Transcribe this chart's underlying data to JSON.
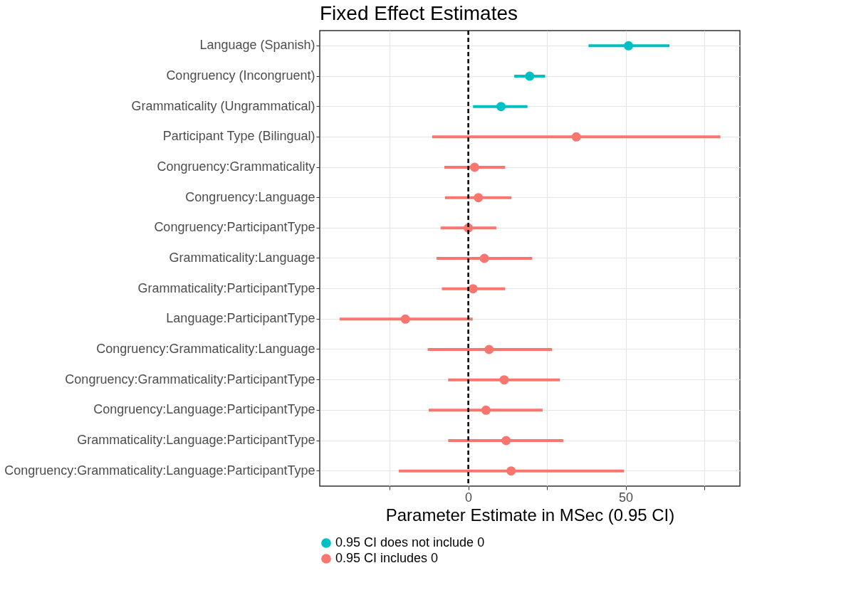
{
  "chart_data": {
    "type": "scatter",
    "orientation": "horizontal",
    "title": "Fixed Effect Estimates",
    "xlabel": "Parameter Estimate in MSec  (0.95 CI)",
    "categories": [
      "Language (Spanish)",
      "Congruency (Incongruent)",
      "Grammaticality (Ungrammatical)",
      "Participant Type (Bilingual)",
      "Congruency:Grammaticality",
      "Congruency:Language",
      "Congruency:ParticipantType",
      "Grammaticality:Language",
      "Grammaticality:ParticipantType",
      "Language:ParticipantType",
      "Congruency:Grammaticality:Language",
      "Congruency:Grammaticality:ParticipantType",
      "Congruency:Language:ParticipantType",
      "Grammaticality:Language:ParticipantType",
      "Congruency:Grammaticality:Language:ParticipantType"
    ],
    "series": [
      {
        "name": "0.95 CI does not include 0",
        "color": "#00bfc4",
        "values": [
          50.9,
          19.5,
          10.4,
          null,
          null,
          null,
          null,
          null,
          null,
          null,
          null,
          null,
          null,
          null,
          null
        ],
        "errors": [
          [
            38.2,
            63.9
          ],
          [
            14.6,
            24.4
          ],
          [
            1.5,
            18.8
          ],
          null,
          null,
          null,
          null,
          null,
          null,
          null,
          null,
          null,
          null,
          null,
          null
        ]
      },
      {
        "name": "0.95 CI includes 0",
        "color": "#f8766d",
        "values": [
          null,
          null,
          null,
          34.3,
          2.0,
          3.2,
          0.0,
          5.1,
          1.5,
          -20.0,
          6.6,
          11.4,
          5.6,
          12.0,
          13.6
        ],
        "errors": [
          null,
          null,
          null,
          [
            -11.5,
            80.1
          ],
          [
            -7.6,
            11.7
          ],
          [
            -7.4,
            13.7
          ],
          [
            -8.8,
            8.9
          ],
          [
            -10.1,
            20.3
          ],
          [
            -8.4,
            11.7
          ],
          [
            -40.9,
            1.4
          ],
          [
            -12.9,
            26.6
          ],
          [
            -6.4,
            29.1
          ],
          [
            -12.6,
            23.6
          ],
          [
            -6.4,
            30.2
          ],
          [
            -22.1,
            49.5
          ]
        ]
      }
    ],
    "xlim": [
      -47.2,
      86.3
    ],
    "xticks": [
      {
        "value": -25,
        "label": null
      },
      0,
      {
        "value": 25,
        "label": null
      },
      50,
      {
        "value": 75,
        "label": null
      }
    ],
    "ref_lines": [
      {
        "axis": "x",
        "value": 0,
        "color": "#000000",
        "line_style": "dashed"
      }
    ],
    "grid": true,
    "legend": "bottom",
    "marker": "circle"
  }
}
